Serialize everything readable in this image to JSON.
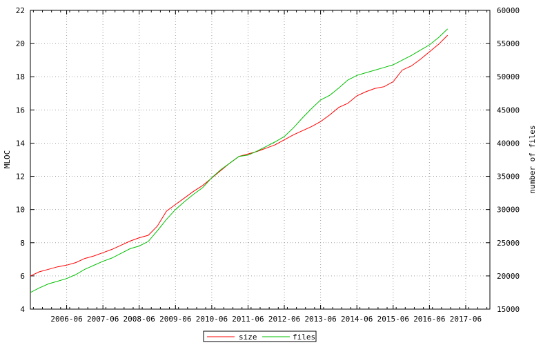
{
  "chart_data": {
    "type": "line",
    "title": "",
    "xlabel": "",
    "ylabel_left": "MLOC",
    "ylabel_right": "number of files",
    "x_ticks": [
      "2006-06",
      "2007-06",
      "2008-06",
      "2009-06",
      "2010-06",
      "2011-06",
      "2012-06",
      "2013-06",
      "2014-06",
      "2015-06",
      "2016-06",
      "2017-06"
    ],
    "xlim": [
      "2005-06",
      "2018-02"
    ],
    "ylim_left": [
      4,
      22
    ],
    "ylim_right": [
      15000,
      60000
    ],
    "left_ticks": [
      "4",
      "6",
      "8",
      "10",
      "12",
      "14",
      "16",
      "18",
      "20",
      "22"
    ],
    "right_ticks": [
      "15000",
      "20000",
      "25000",
      "30000",
      "35000",
      "40000",
      "45000",
      "50000",
      "55000",
      "60000"
    ],
    "grid": true,
    "legend_position": "bottom-center",
    "series": [
      {
        "name": "size",
        "axis": "left",
        "color": "#ff0000",
        "x": [
          "2005-06",
          "2005-09",
          "2005-12",
          "2006-03",
          "2006-06",
          "2006-09",
          "2006-12",
          "2007-03",
          "2007-06",
          "2007-09",
          "2007-12",
          "2008-03",
          "2008-06",
          "2008-09",
          "2008-12",
          "2009-03",
          "2009-06",
          "2009-09",
          "2009-12",
          "2010-03",
          "2010-06",
          "2010-09",
          "2010-12",
          "2011-03",
          "2011-06",
          "2011-09",
          "2011-12",
          "2012-03",
          "2012-06",
          "2012-09",
          "2012-12",
          "2013-03",
          "2013-06",
          "2013-09",
          "2013-12",
          "2014-03",
          "2014-06",
          "2014-09",
          "2014-12",
          "2015-03",
          "2015-06",
          "2015-09",
          "2015-12",
          "2016-03",
          "2016-06",
          "2016-09",
          "2016-12"
        ],
        "y": [
          6.0,
          6.25,
          6.4,
          6.55,
          6.65,
          6.8,
          7.05,
          7.2,
          7.4,
          7.6,
          7.85,
          8.1,
          8.3,
          8.45,
          9.0,
          9.9,
          10.3,
          10.7,
          11.1,
          11.45,
          11.9,
          12.35,
          12.8,
          13.2,
          13.35,
          13.5,
          13.7,
          13.9,
          14.2,
          14.5,
          14.75,
          15.0,
          15.3,
          15.7,
          16.15,
          16.4,
          16.85,
          17.1,
          17.3,
          17.4,
          17.7,
          18.4,
          18.65,
          19.05,
          19.5,
          19.95,
          20.5
        ]
      },
      {
        "name": "files",
        "axis": "right",
        "color": "#00c000",
        "x": [
          "2005-06",
          "2005-09",
          "2005-12",
          "2006-03",
          "2006-06",
          "2006-09",
          "2006-12",
          "2007-03",
          "2007-06",
          "2007-09",
          "2007-12",
          "2008-03",
          "2008-06",
          "2008-09",
          "2008-12",
          "2009-03",
          "2009-06",
          "2009-09",
          "2009-12",
          "2010-03",
          "2010-06",
          "2010-09",
          "2010-12",
          "2011-03",
          "2011-06",
          "2011-09",
          "2011-12",
          "2012-03",
          "2012-06",
          "2012-09",
          "2012-12",
          "2013-03",
          "2013-06",
          "2013-09",
          "2013-12",
          "2014-03",
          "2014-06",
          "2014-09",
          "2014-12",
          "2015-03",
          "2015-06",
          "2015-09",
          "2015-12",
          "2016-03",
          "2016-06",
          "2016-09",
          "2016-12"
        ],
        "y": [
          17500,
          18200,
          18800,
          19200,
          19600,
          20200,
          21000,
          21600,
          22200,
          22700,
          23400,
          24100,
          24500,
          25200,
          26800,
          28500,
          30000,
          31200,
          32300,
          33300,
          34800,
          36000,
          37000,
          38000,
          38200,
          38800,
          39500,
          40200,
          41000,
          42300,
          43800,
          45200,
          46500,
          47200,
          48300,
          49500,
          50200,
          50600,
          51000,
          51400,
          51800,
          52500,
          53200,
          54000,
          54800,
          55900,
          57200
        ]
      }
    ]
  }
}
